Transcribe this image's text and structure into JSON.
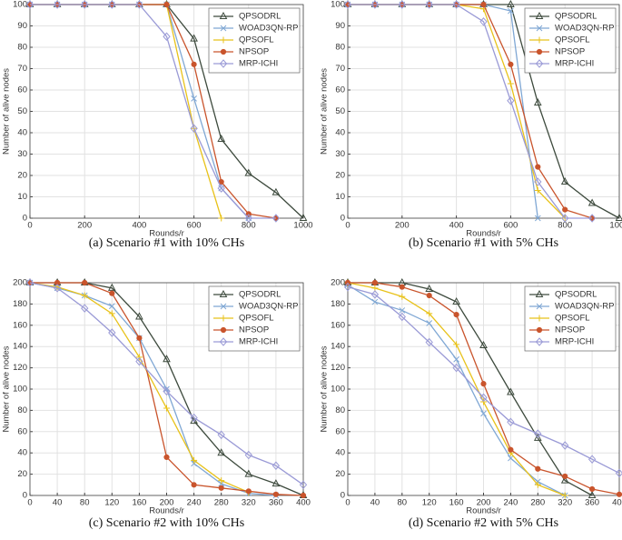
{
  "chart_data": [
    {
      "type": "line",
      "caption": "(a) Scenario #1 with 10% CHs",
      "xlabel": "Rounds/r",
      "ylabel": "Number of alive nodes",
      "x": [
        0,
        100,
        200,
        300,
        400,
        500,
        600,
        700,
        800,
        900,
        1000
      ],
      "xlim": [
        0,
        1000
      ],
      "xticks": [
        0,
        200,
        400,
        600,
        800,
        1000
      ],
      "ylim": [
        0,
        100
      ],
      "yticks": [
        0,
        10,
        20,
        30,
        40,
        50,
        60,
        70,
        80,
        90,
        100
      ],
      "grid": true,
      "legend": "upper right",
      "series": [
        {
          "name": "QPSODRL",
          "color": "#3d4a3d",
          "marker": "triangle",
          "values": [
            100,
            100,
            100,
            100,
            100,
            100,
            84,
            37,
            21,
            12,
            0
          ]
        },
        {
          "name": "WOAD3QN-RP",
          "color": "#7fa7d4",
          "marker": "x",
          "values": [
            100,
            100,
            100,
            100,
            100,
            100,
            56,
            14,
            0,
            null,
            null
          ]
        },
        {
          "name": "QPSOFL",
          "color": "#e8c21a",
          "marker": "plus",
          "values": [
            100,
            100,
            100,
            100,
            100,
            100,
            42,
            0,
            null,
            null,
            null
          ]
        },
        {
          "name": "NPSOP",
          "color": "#c9542c",
          "marker": "circle",
          "values": [
            100,
            100,
            100,
            100,
            100,
            100,
            72,
            17,
            2,
            0,
            null
          ]
        },
        {
          "name": "MRP-ICHI",
          "color": "#9a9ad6",
          "marker": "diamond",
          "values": [
            100,
            100,
            100,
            100,
            100,
            85,
            42,
            14,
            0,
            0,
            null
          ]
        }
      ]
    },
    {
      "type": "line",
      "caption": "(b) Scenario #1 with 5% CHs",
      "xlabel": "Rounds/r",
      "ylabel": "Number of alive nodes",
      "x": [
        0,
        100,
        200,
        300,
        400,
        500,
        600,
        700,
        800,
        900,
        1000
      ],
      "xlim": [
        0,
        1000
      ],
      "xticks": [
        0,
        200,
        400,
        600,
        800,
        1000
      ],
      "ylim": [
        0,
        100
      ],
      "yticks": [
        0,
        10,
        20,
        30,
        40,
        50,
        60,
        70,
        80,
        90,
        100
      ],
      "grid": true,
      "legend": "upper right",
      "series": [
        {
          "name": "QPSODRL",
          "color": "#3d4a3d",
          "marker": "triangle",
          "values": [
            100,
            100,
            100,
            100,
            100,
            100,
            100,
            54,
            17,
            7,
            0
          ]
        },
        {
          "name": "WOAD3QN-RP",
          "color": "#7fa7d4",
          "marker": "x",
          "values": [
            100,
            100,
            100,
            100,
            100,
            100,
            97,
            0,
            null,
            null,
            null
          ]
        },
        {
          "name": "QPSOFL",
          "color": "#e8c21a",
          "marker": "plus",
          "values": [
            100,
            100,
            100,
            100,
            100,
            98,
            63,
            13,
            0,
            null,
            null
          ]
        },
        {
          "name": "NPSOP",
          "color": "#c9542c",
          "marker": "circle",
          "values": [
            100,
            100,
            100,
            100,
            100,
            100,
            72,
            24,
            4,
            0,
            null
          ]
        },
        {
          "name": "MRP-ICHI",
          "color": "#9a9ad6",
          "marker": "diamond",
          "values": [
            100,
            100,
            100,
            100,
            100,
            92,
            55,
            17,
            0,
            0,
            null
          ]
        }
      ]
    },
    {
      "type": "line",
      "caption": "(c) Scenario #2 with 10% CHs",
      "xlabel": "Rounds/r",
      "ylabel": "Number of alive nodes",
      "x": [
        0,
        40,
        80,
        120,
        160,
        200,
        240,
        280,
        320,
        360,
        400
      ],
      "xlim": [
        0,
        400
      ],
      "xticks": [
        0,
        40,
        80,
        120,
        160,
        200,
        240,
        280,
        320,
        360,
        400
      ],
      "ylim": [
        0,
        200
      ],
      "yticks": [
        0,
        20,
        40,
        60,
        80,
        100,
        120,
        140,
        160,
        180,
        200
      ],
      "grid": true,
      "legend": "upper right",
      "series": [
        {
          "name": "QPSODRL",
          "color": "#3d4a3d",
          "marker": "triangle",
          "values": [
            200,
            200,
            200,
            195,
            168,
            128,
            70,
            40,
            20,
            11,
            0
          ]
        },
        {
          "name": "WOAD3QN-RP",
          "color": "#7fa7d4",
          "marker": "x",
          "values": [
            200,
            195,
            188,
            178,
            148,
            100,
            30,
            11,
            2,
            0,
            null
          ]
        },
        {
          "name": "QPSOFL",
          "color": "#e8c21a",
          "marker": "plus",
          "values": [
            200,
            196,
            188,
            171,
            130,
            82,
            33,
            14,
            3,
            null,
            null
          ]
        },
        {
          "name": "NPSOP",
          "color": "#c9542c",
          "marker": "circle",
          "values": [
            200,
            200,
            200,
            190,
            148,
            36,
            10,
            7,
            4,
            1,
            0
          ]
        },
        {
          "name": "MRP-ICHI",
          "color": "#9a9ad6",
          "marker": "diamond",
          "values": [
            200,
            195,
            176,
            153,
            126,
            98,
            73,
            57,
            38,
            28,
            10
          ]
        }
      ]
    },
    {
      "type": "line",
      "caption": "(d) Scenario #2 with 5% CHs",
      "xlabel": "Rounds/r",
      "ylabel": "Number of alive nodes",
      "x": [
        0,
        40,
        80,
        120,
        160,
        200,
        240,
        280,
        320,
        360,
        400
      ],
      "xlim": [
        0,
        400
      ],
      "xticks": [
        0,
        40,
        80,
        120,
        160,
        200,
        240,
        280,
        320,
        360,
        400
      ],
      "ylim": [
        0,
        200
      ],
      "yticks": [
        0,
        20,
        40,
        60,
        80,
        100,
        120,
        140,
        160,
        180,
        200
      ],
      "grid": true,
      "legend": "upper right",
      "series": [
        {
          "name": "QPSODRL",
          "color": "#3d4a3d",
          "marker": "triangle",
          "values": [
            200,
            200,
            200,
            194,
            182,
            141,
            97,
            54,
            14,
            0,
            null
          ]
        },
        {
          "name": "WOAD3QN-RP",
          "color": "#7fa7d4",
          "marker": "x",
          "values": [
            198,
            182,
            174,
            162,
            128,
            77,
            35,
            13,
            0,
            null,
            null
          ]
        },
        {
          "name": "QPSOFL",
          "color": "#e8c21a",
          "marker": "plus",
          "values": [
            200,
            195,
            187,
            171,
            142,
            88,
            40,
            10,
            0,
            null,
            null
          ]
        },
        {
          "name": "NPSOP",
          "color": "#c9542c",
          "marker": "circle",
          "values": [
            200,
            200,
            196,
            188,
            170,
            105,
            43,
            25,
            18,
            6,
            1
          ]
        },
        {
          "name": "MRP-ICHI",
          "color": "#9a9ad6",
          "marker": "diamond",
          "values": [
            196,
            189,
            168,
            144,
            120,
            92,
            69,
            58,
            47,
            34,
            21
          ]
        }
      ]
    }
  ]
}
